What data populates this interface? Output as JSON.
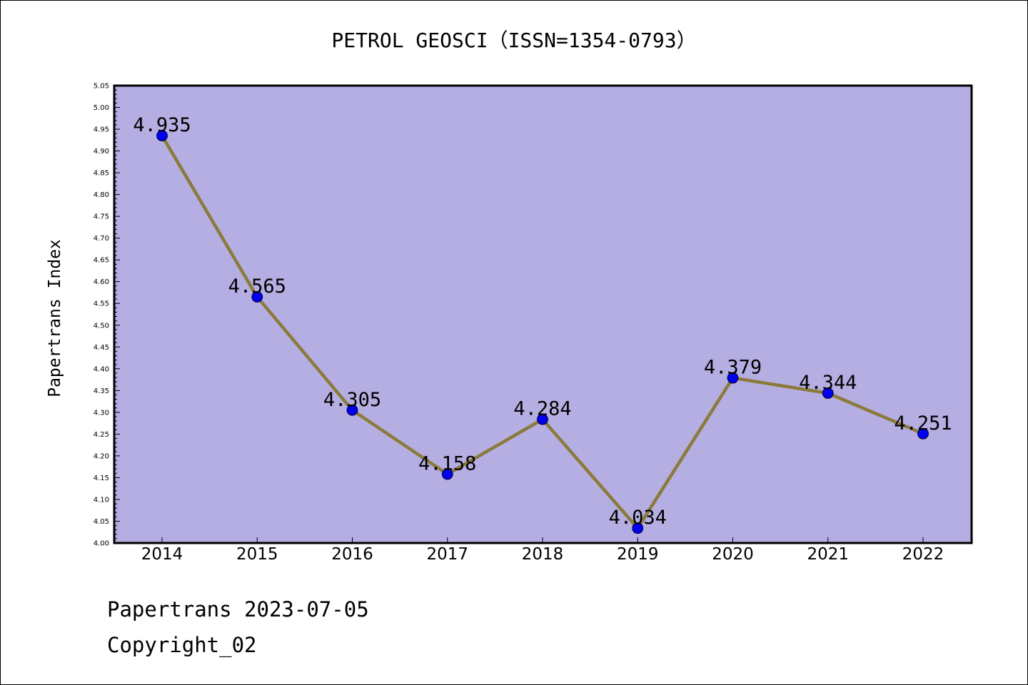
{
  "chart_data": {
    "type": "line",
    "title": "PETROL GEOSCI（ISSN=1354-0793）",
    "ylabel": "Papertrans Index",
    "xlabel": "",
    "categories": [
      "2014",
      "2015",
      "2016",
      "2017",
      "2018",
      "2019",
      "2020",
      "2021",
      "2022"
    ],
    "series": [
      {
        "values": [
          4.935,
          4.565,
          4.305,
          4.158,
          4.284,
          4.034,
          4.379,
          4.344,
          4.251
        ],
        "labels": [
          "4.935",
          "4.565",
          "4.305",
          "4.158",
          "4.284",
          "4.034",
          "4.379",
          "4.344",
          "4.251"
        ],
        "line_color": "#8b7a3a",
        "marker_color": "#0000ee"
      }
    ],
    "ylim": [
      4.0,
      5.05
    ],
    "yticks": [
      "4.00",
      "4.05",
      "4.10",
      "4.15",
      "4.20",
      "4.25",
      "4.30",
      "4.35",
      "4.40",
      "4.45",
      "4.50",
      "4.55",
      "4.60",
      "4.65",
      "4.70",
      "4.75",
      "4.80",
      "4.85",
      "4.90",
      "4.95",
      "5.00",
      "5.05"
    ],
    "grid": false,
    "plot_background": "#b5aee2"
  },
  "footer": {
    "line1": "Papertrans 2023-07-05",
    "line2": "Copyright_02"
  }
}
